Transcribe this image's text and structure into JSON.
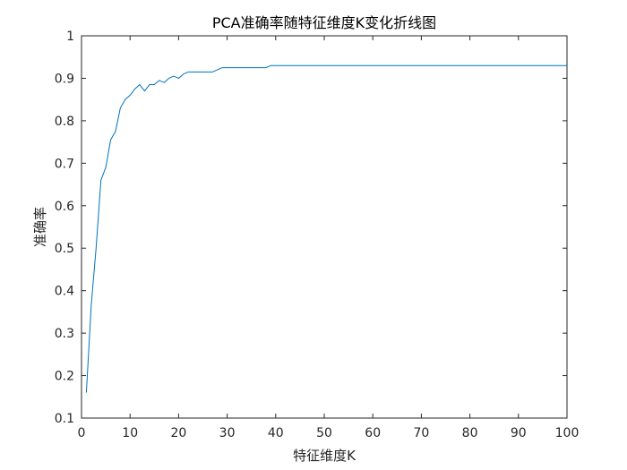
{
  "chart_data": {
    "type": "line",
    "title": "PCA准确率随特征维度K变化折线图",
    "xlabel": "特征维度K",
    "ylabel": "准确率",
    "xlim": [
      0,
      100
    ],
    "ylim": [
      0.1,
      1
    ],
    "xticks": [
      0,
      10,
      20,
      30,
      40,
      50,
      60,
      70,
      80,
      90,
      100
    ],
    "yticks": [
      0.1,
      0.2,
      0.3,
      0.4,
      0.5,
      0.6,
      0.7,
      0.8,
      0.9,
      1
    ],
    "ytick_labels": [
      "0.1",
      "0.2",
      "0.3",
      "0.4",
      "0.5",
      "0.6",
      "0.7",
      "0.8",
      "0.9",
      "1"
    ],
    "grid": false,
    "colors": {
      "line": "#0072BD",
      "axes": "#262626"
    },
    "series": [
      {
        "x": [
          1,
          2,
          3,
          4,
          5,
          6,
          7,
          8,
          9,
          10,
          11,
          12,
          13,
          14,
          15,
          16,
          17,
          18,
          19,
          20,
          21,
          22,
          23,
          24,
          25,
          26,
          27,
          28,
          29,
          30,
          31,
          32,
          33,
          34,
          35,
          36,
          37,
          38,
          39,
          40,
          41,
          42,
          43,
          44,
          45,
          46,
          47,
          48,
          49,
          50,
          51,
          52,
          53,
          54,
          55,
          56,
          57,
          58,
          59,
          60,
          61,
          62,
          63,
          64,
          65,
          66,
          67,
          68,
          69,
          70,
          71,
          72,
          73,
          74,
          75,
          76,
          77,
          78,
          79,
          80,
          81,
          82,
          83,
          84,
          85,
          86,
          87,
          88,
          89,
          90,
          91,
          92,
          93,
          94,
          95,
          96,
          97,
          98,
          99,
          100
        ],
        "y": [
          0.16,
          0.365,
          0.5,
          0.66,
          0.69,
          0.755,
          0.775,
          0.83,
          0.85,
          0.86,
          0.875,
          0.885,
          0.87,
          0.885,
          0.885,
          0.895,
          0.89,
          0.9,
          0.905,
          0.9,
          0.91,
          0.915,
          0.915,
          0.915,
          0.915,
          0.915,
          0.915,
          0.92,
          0.925,
          0.925,
          0.925,
          0.925,
          0.925,
          0.925,
          0.925,
          0.925,
          0.925,
          0.925,
          0.93,
          0.93,
          0.93,
          0.93,
          0.93,
          0.93,
          0.93,
          0.93,
          0.93,
          0.93,
          0.93,
          0.93,
          0.93,
          0.93,
          0.93,
          0.93,
          0.93,
          0.93,
          0.93,
          0.93,
          0.93,
          0.93,
          0.93,
          0.93,
          0.93,
          0.93,
          0.93,
          0.93,
          0.93,
          0.93,
          0.93,
          0.93,
          0.93,
          0.93,
          0.93,
          0.93,
          0.93,
          0.93,
          0.93,
          0.93,
          0.93,
          0.93,
          0.93,
          0.93,
          0.93,
          0.93,
          0.93,
          0.93,
          0.93,
          0.93,
          0.93,
          0.93,
          0.93,
          0.93,
          0.93,
          0.93,
          0.93,
          0.93,
          0.93,
          0.93,
          0.93,
          0.93
        ]
      }
    ]
  }
}
